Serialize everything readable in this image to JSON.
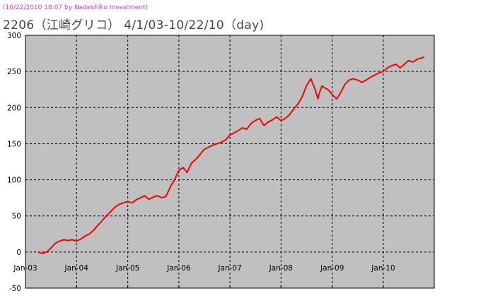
{
  "timestamp": "(10/22/2010 18:07 by Nadeshiko Investment)",
  "title": "2206（江崎グリコ） 4/1/03-10/22/10（day)",
  "colors": {
    "plot_bg": "#c0c0c0",
    "line": "#ff0000",
    "grid": "#000000",
    "timestamp": "#e040a0"
  },
  "chart_data": {
    "type": "line",
    "title": "2206（江崎グリコ） 4/1/03-10/22/10（day)",
    "xlabel": "",
    "ylabel": "",
    "x_range": [
      "2003-01-01",
      "2010-12-31"
    ],
    "x_ticks": [
      "Jan-03",
      "Jan-04",
      "Jan-05",
      "Jan-06",
      "Jan-07",
      "Jan-08",
      "Jan-09",
      "Jan-10"
    ],
    "ylim": [
      -50,
      300
    ],
    "y_ticks": [
      -50,
      0,
      50,
      100,
      150,
      200,
      250,
      300
    ],
    "grid": true,
    "legend": "none",
    "series": [
      {
        "color": "#ff0000",
        "x": [
          "2003-04-01",
          "2003-05-01",
          "2003-06-01",
          "2003-07-01",
          "2003-08-01",
          "2003-09-01",
          "2003-10-01",
          "2003-11-01",
          "2003-12-01",
          "2004-01-01",
          "2004-02-01",
          "2004-03-01",
          "2004-04-01",
          "2004-05-01",
          "2004-06-01",
          "2004-07-01",
          "2004-08-01",
          "2004-09-01",
          "2004-10-01",
          "2004-11-01",
          "2004-12-01",
          "2005-01-01",
          "2005-02-01",
          "2005-03-01",
          "2005-04-01",
          "2005-05-01",
          "2005-06-01",
          "2005-07-01",
          "2005-08-01",
          "2005-09-01",
          "2005-10-01",
          "2005-11-01",
          "2005-12-01",
          "2006-01-01",
          "2006-02-01",
          "2006-03-01",
          "2006-04-01",
          "2006-05-01",
          "2006-06-01",
          "2006-07-01",
          "2006-08-01",
          "2006-09-01",
          "2006-10-01",
          "2006-11-01",
          "2006-12-01",
          "2007-01-01",
          "2007-02-01",
          "2007-03-01",
          "2007-04-01",
          "2007-05-01",
          "2007-06-01",
          "2007-07-01",
          "2007-08-01",
          "2007-09-01",
          "2007-10-01",
          "2007-11-01",
          "2007-12-01",
          "2008-01-01",
          "2008-02-01",
          "2008-03-01",
          "2008-04-01",
          "2008-05-01",
          "2008-06-01",
          "2008-07-01",
          "2008-08-01",
          "2008-09-01",
          "2008-09-20",
          "2008-10-01",
          "2008-10-20",
          "2008-11-01",
          "2008-12-01",
          "2009-01-01",
          "2009-02-01",
          "2009-03-01",
          "2009-04-01",
          "2009-05-01",
          "2009-06-01",
          "2009-07-01",
          "2009-08-01",
          "2009-09-01",
          "2009-10-01",
          "2009-11-01",
          "2009-12-01",
          "2010-01-01",
          "2010-02-01",
          "2010-03-01",
          "2010-04-01",
          "2010-05-01",
          "2010-06-01",
          "2010-07-01",
          "2010-08-01",
          "2010-09-01",
          "2010-10-22"
        ],
        "y": [
          0,
          -2,
          0,
          5,
          12,
          15,
          17,
          16,
          17,
          15,
          18,
          22,
          25,
          30,
          37,
          43,
          50,
          56,
          62,
          66,
          68,
          70,
          68,
          72,
          75,
          78,
          73,
          76,
          78,
          75,
          77,
          90,
          100,
          113,
          117,
          110,
          123,
          128,
          135,
          142,
          145,
          148,
          150,
          152,
          155,
          162,
          165,
          168,
          172,
          170,
          178,
          182,
          185,
          175,
          180,
          183,
          187,
          182,
          185,
          190,
          198,
          205,
          215,
          230,
          240,
          225,
          212,
          220,
          230,
          228,
          225,
          218,
          212,
          220,
          232,
          238,
          240,
          238,
          235,
          238,
          242,
          245,
          248,
          250,
          255,
          258,
          260,
          255,
          260,
          265,
          263,
          267,
          270
        ]
      }
    ]
  }
}
